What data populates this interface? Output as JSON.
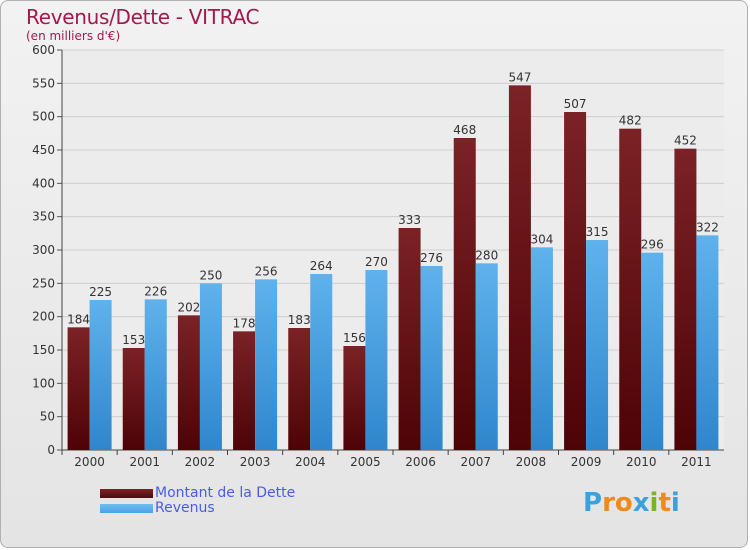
{
  "header": {
    "title": "Revenus/Dette - VITRAC",
    "subtitle": "(en milliers d'€)"
  },
  "colors": {
    "dette": "#7b2226",
    "revenus": "#4ba3e4",
    "title": "#a2194c",
    "legend_text": "#4a5be8"
  },
  "legend": [
    {
      "label": "Montant de la Dette",
      "color": "#7b2226"
    },
    {
      "label": "Revenus",
      "color": "#4ba3e4"
    }
  ],
  "logo": {
    "text": "Proxiti",
    "letters": [
      "P",
      "r",
      "o",
      "x",
      "i",
      "t",
      "i"
    ],
    "letter_colors": [
      "#3aa0de",
      "#f08a1c",
      "#f08a1c",
      "#3aa0de",
      "#7ab51d",
      "#f08a1c",
      "#3aa0de"
    ]
  },
  "chart_data": {
    "type": "bar",
    "categories": [
      "2000",
      "2001",
      "2002",
      "2003",
      "2004",
      "2005",
      "2006",
      "2007",
      "2008",
      "2009",
      "2010",
      "2011"
    ],
    "series": [
      {
        "name": "Montant de la Dette",
        "values": [
          184,
          153,
          202,
          178,
          183,
          156,
          333,
          468,
          547,
          507,
          482,
          452
        ]
      },
      {
        "name": "Revenus",
        "values": [
          225,
          226,
          250,
          256,
          264,
          270,
          276,
          280,
          304,
          315,
          296,
          322
        ]
      }
    ],
    "title": "Revenus/Dette - VITRAC",
    "ylabel": "(en milliers d'€)",
    "ylim": [
      0,
      600
    ],
    "yticks": [
      0,
      50,
      100,
      150,
      200,
      250,
      300,
      350,
      400,
      450,
      500,
      550,
      600
    ],
    "grid": true,
    "legend_position": "bottom-left"
  }
}
